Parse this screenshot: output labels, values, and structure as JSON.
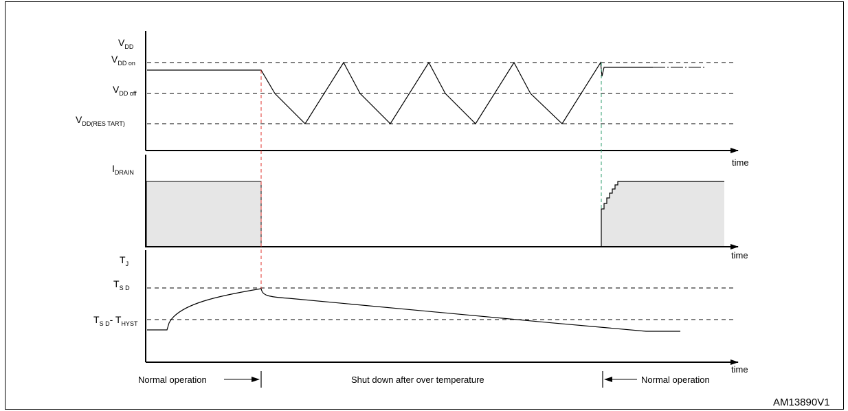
{
  "diagram": {
    "vdd_panel": {
      "axis_label": {
        "main": "V",
        "sub": "DD"
      },
      "levels": [
        {
          "main": "V",
          "sub": "DD on"
        },
        {
          "main": "V",
          "sub": "DD off"
        },
        {
          "main": "V",
          "sub": "DD(RES TART)"
        }
      ],
      "time_label": "time"
    },
    "idrain_panel": {
      "axis_label": {
        "main": "I",
        "sub": "DRAIN"
      },
      "time_label": "time"
    },
    "tj_panel": {
      "axis_label": {
        "main": "T",
        "sub": "J"
      },
      "levels": [
        {
          "main": "T",
          "sub": "S D"
        },
        {
          "main": "T",
          "sub": "S D",
          "sep": "- T",
          "sub2": "HYST"
        }
      ],
      "time_label": "time"
    },
    "phases": [
      {
        "label": "Normal operation"
      },
      {
        "label": "Shut down after over temperature"
      },
      {
        "label": "Normal operation"
      }
    ],
    "figure_id": "AM13890V1",
    "colors": {
      "shutdown_marker": "#e0302b",
      "restart_marker": "#2e9c6e",
      "current_fill": "#e6e6e6",
      "line": "#000000"
    }
  }
}
